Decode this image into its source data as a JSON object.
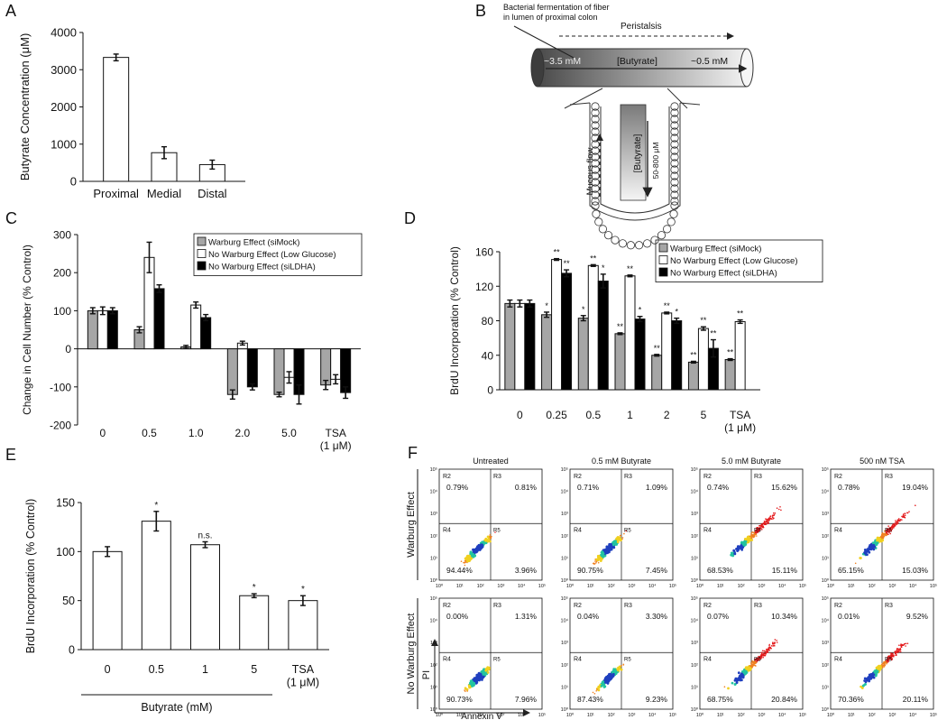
{
  "panels": {
    "A": "A",
    "B": "B",
    "C": "C",
    "D": "D",
    "E": "E",
    "F": "F"
  },
  "chart_data": [
    {
      "id": "A",
      "type": "bar",
      "categories": [
        "Proximal",
        "Medial",
        "Distal"
      ],
      "values": [
        3330,
        770,
        450
      ],
      "errors": [
        90,
        160,
        120
      ],
      "ylabel": "Butyrate Concentration (μM)",
      "yticks": [
        "0",
        "1000",
        "2000",
        "3000",
        "4000"
      ],
      "ylim": [
        0,
        4000
      ]
    },
    {
      "id": "C",
      "type": "bar",
      "categories": [
        "0",
        "0.5",
        "1.0",
        "2.0",
        "5.0",
        "TSA"
      ],
      "category_sub": [
        "",
        "",
        "",
        "",
        "",
        "(1 μM)"
      ],
      "ylabel": "Change in Cell Number (% Control)",
      "yticks": [
        "-200",
        "-100",
        "0",
        "100",
        "200",
        "300"
      ],
      "ylim": [
        -200,
        300
      ],
      "series": [
        {
          "name": "Warburg Effect (siMock)",
          "color": "#a6a6a6",
          "values": [
            100,
            50,
            5,
            -120,
            -120,
            -95
          ],
          "errors": [
            8,
            8,
            4,
            12,
            6,
            12
          ]
        },
        {
          "name": "No Warburg Effect (Low Glucose)",
          "color": "#ffffff",
          "values": [
            100,
            240,
            115,
            15,
            -75,
            -80
          ],
          "errors": [
            10,
            40,
            8,
            5,
            15,
            12
          ]
        },
        {
          "name": "No Warburg Effect (siLDHA)",
          "color": "#000000",
          "values": [
            100,
            158,
            82,
            -100,
            -120,
            -115
          ],
          "errors": [
            8,
            10,
            8,
            8,
            25,
            15
          ]
        }
      ],
      "legend": "top-right"
    },
    {
      "id": "D",
      "type": "bar",
      "categories": [
        "0",
        "0.25",
        "0.5",
        "1",
        "2",
        "5",
        "TSA"
      ],
      "category_sub": [
        "",
        "",
        "",
        "",
        "",
        "",
        "(1 μM)"
      ],
      "ylabel": "BrdU Incorporation (% Control)",
      "yticks": [
        "0",
        "40",
        "80",
        "120",
        "160"
      ],
      "ylim": [
        0,
        160
      ],
      "series": [
        {
          "name": "Warburg Effect (siMock)",
          "color": "#a6a6a6",
          "values": [
            100,
            87,
            83,
            65,
            40,
            32,
            35
          ],
          "errors": [
            4,
            3,
            3,
            1,
            1,
            1,
            1
          ],
          "marks": [
            "",
            "*",
            "*",
            "**",
            "**",
            "**",
            "**"
          ]
        },
        {
          "name": "No Warburg Effect (Low Glucose)",
          "color": "#ffffff",
          "values": [
            100,
            151,
            144,
            132,
            89,
            71,
            79
          ],
          "errors": [
            4,
            1,
            1,
            1,
            1,
            2,
            2
          ],
          "marks": [
            "",
            "**",
            "**",
            "**",
            "**",
            "**",
            "**"
          ]
        },
        {
          "name": "No Warburg Effect (siLDHA)",
          "color": "#000000",
          "values": [
            100,
            135,
            126,
            82,
            80,
            48,
            null
          ],
          "errors": [
            4,
            4,
            8,
            3,
            3,
            10,
            0
          ],
          "marks": [
            "",
            "**",
            "*",
            "*",
            "*",
            "**",
            ""
          ]
        }
      ],
      "legend": "top-right"
    },
    {
      "id": "E",
      "type": "bar",
      "categories": [
        "0",
        "0.5",
        "1",
        "5",
        "TSA"
      ],
      "category_sub": [
        "",
        "",
        "",
        "",
        "(1 μM)"
      ],
      "values": [
        100,
        131,
        107,
        55,
        50
      ],
      "errors": [
        5,
        10,
        3,
        2,
        5
      ],
      "marks": [
        "",
        "*",
        "n.s.",
        "*",
        "*"
      ],
      "ylabel": "BrdU Incorporation (% Control)",
      "xlabel": "Butyrate (mM)",
      "yticks": [
        "0",
        "50",
        "100",
        "150"
      ],
      "ylim": [
        0,
        150
      ]
    }
  ],
  "schematic": {
    "fermentation": [
      "Bacterial fermentation of fiber",
      "in lumen of proximal colon"
    ],
    "peristalsis": "Peristalsis",
    "high": "~3.5 mM",
    "butyrate": "[Butyrate]",
    "low": "~0.5 mM",
    "crypt_butyrate": "[Butyrate]",
    "crypt_range": "50-800 μM",
    "mucous": "Mucous flow"
  },
  "flow": {
    "columns": [
      "Untreated",
      "0.5 mM Butyrate",
      "5.0 mM Butyrate",
      "500 nM TSA"
    ],
    "rows": [
      "Warburg Effect",
      "No Warburg Effect"
    ],
    "ylabel": "PI",
    "xlabel": "Annexin V",
    "region_labels": [
      "R2",
      "R3",
      "R4",
      "R5"
    ],
    "tick_labels": [
      "10⁰",
      "10¹",
      "10²",
      "10³",
      "10⁴",
      "10⁵"
    ],
    "quadrants": [
      [
        [
          "0.79%",
          "0.81%",
          "94.44%",
          "3.96%"
        ],
        [
          "0.71%",
          "1.09%",
          "90.75%",
          "7.45%"
        ],
        [
          "0.74%",
          "15.62%",
          "68.53%",
          "15.11%"
        ],
        [
          "0.78%",
          "19.04%",
          "65.15%",
          "15.03%"
        ]
      ],
      [
        [
          "0.00%",
          "1.31%",
          "90.73%",
          "7.96%"
        ],
        [
          "0.04%",
          "3.30%",
          "87.43%",
          "9.23%"
        ],
        [
          "0.07%",
          "10.34%",
          "68.75%",
          "20.84%"
        ],
        [
          "0.01%",
          "9.52%",
          "70.36%",
          "20.11%"
        ]
      ]
    ]
  }
}
